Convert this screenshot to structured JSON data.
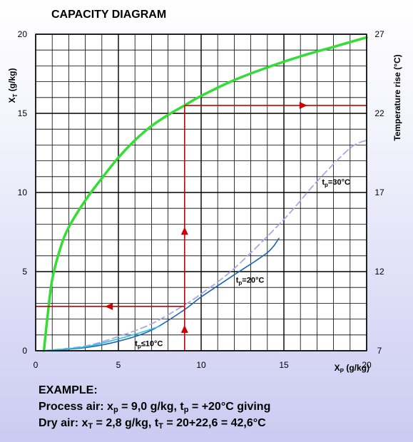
{
  "chart_data": {
    "type": "line",
    "title": "CAPACITY DIAGRAM",
    "xlabel": {
      "main": "X",
      "sub": "P",
      "unit": " (g/kg)"
    },
    "ylabel": {
      "main": "X",
      "sub": "T",
      "unit": " (g/kg)"
    },
    "y2label": "Temperature rise (°C)",
    "xlim": [
      0,
      20
    ],
    "ylim": [
      0,
      20
    ],
    "x_ticks": [
      "0",
      "5",
      "10",
      "15",
      "20"
    ],
    "y_ticks": [
      "0",
      "5",
      "10",
      "15",
      "20"
    ],
    "y2_ticks": [
      "7",
      "12",
      "17",
      "22",
      "27"
    ],
    "grid": true,
    "series": [
      {
        "name": "",
        "color": "#33dd33",
        "points": [
          [
            0.5,
            0
          ],
          [
            0.7,
            2
          ],
          [
            1,
            4.5
          ],
          [
            1.5,
            6.5
          ],
          [
            2,
            7.8
          ],
          [
            3,
            9.5
          ],
          [
            4,
            10.9
          ],
          [
            5,
            12.2
          ],
          [
            6,
            13.3
          ],
          [
            7,
            14.2
          ],
          [
            8,
            14.9
          ],
          [
            9,
            15.5
          ],
          [
            10,
            16.1
          ],
          [
            12,
            17.1
          ],
          [
            14,
            17.9
          ],
          [
            16,
            18.6
          ],
          [
            18,
            19.2
          ],
          [
            20,
            19.8
          ]
        ]
      },
      {
        "name": "tp=30°C",
        "color": "#a8a8e8",
        "dashed": true,
        "points": [
          [
            0.5,
            0
          ],
          [
            3,
            0.3
          ],
          [
            5,
            0.9
          ],
          [
            7,
            1.7
          ],
          [
            9,
            2.9
          ],
          [
            10,
            3.6
          ],
          [
            12,
            5.2
          ],
          [
            15,
            8.3
          ],
          [
            17,
            10.7
          ],
          [
            19,
            12.8
          ],
          [
            20,
            13.3
          ]
        ]
      },
      {
        "name": "tp=20°C",
        "color": "#1a66b5",
        "points": [
          [
            0.5,
            0
          ],
          [
            3,
            0.2
          ],
          [
            5,
            0.6
          ],
          [
            7,
            1.3
          ],
          [
            9,
            2.6
          ],
          [
            10,
            3.4
          ],
          [
            12,
            4.8
          ],
          [
            14,
            6.2
          ],
          [
            14.7,
            7.1
          ]
        ]
      },
      {
        "name": "tp≤10°C",
        "color": "#33c0dd",
        "points": [
          [
            0.5,
            0
          ],
          [
            3,
            0.25
          ],
          [
            5,
            0.75
          ],
          [
            6.5,
            1.2
          ],
          [
            7.5,
            1.55
          ]
        ]
      }
    ],
    "series_labels": [
      {
        "main": "t",
        "sub": "p",
        "rest": "=30°C",
        "x": 17.3,
        "y": 10.5
      },
      {
        "main": "t",
        "sub": "p",
        "rest": "=20°C",
        "x": 12.1,
        "y": 4.3
      },
      {
        "main": "t",
        "sub": "p",
        "rest": "≤10°C",
        "x": 6.0,
        "y": 0.3
      }
    ],
    "example_path": {
      "color": "#cc0000",
      "xp": 9.0,
      "xt": 2.8,
      "xt_curve": 15.5,
      "arrow_to_right_x": 20
    }
  },
  "example": {
    "heading": "EXAMPLE:",
    "line1_prefix": "Process air: x",
    "line1_sub1": "p",
    "line1_mid": " = 9,0 g/kg, t",
    "line1_sub2": "p",
    "line1_suffix": " = +20°C giving",
    "line2_prefix": "Dry air: x",
    "line2_sub1": "T",
    "line2_mid": " = 2,8 g/kg, t",
    "line2_sub2": "T",
    "line2_suffix": " = 20+22,6 = 42,6°C"
  }
}
